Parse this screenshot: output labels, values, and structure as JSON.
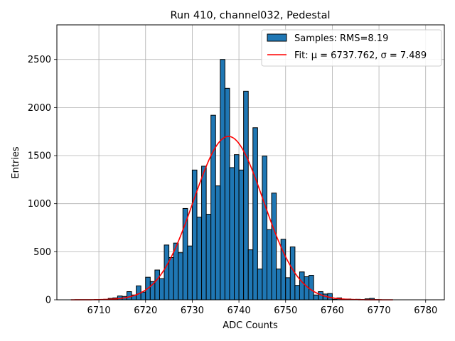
{
  "chart_data": {
    "type": "bar",
    "title": "Run 410, channel032, Pedestal",
    "xlabel": "ADC Counts",
    "ylabel": "Entries",
    "xlim": [
      6701,
      6784
    ],
    "ylim": [
      0,
      2860
    ],
    "xticks": [
      6710,
      6720,
      6730,
      6740,
      6750,
      6760,
      6770,
      6780
    ],
    "yticks": [
      0,
      500,
      1000,
      1500,
      2000,
      2500
    ],
    "grid": true,
    "legend_position": "top-right",
    "bin_width": 1,
    "colors": {
      "bars": "#1f77b4",
      "fit": "#ff0000",
      "grid": "#b0b0b0"
    },
    "series": [
      {
        "name": "Samples: RMS=8.19",
        "type": "bar",
        "bin_left_edges": [
          6711,
          6712,
          6713,
          6714,
          6715,
          6716,
          6717,
          6718,
          6719,
          6720,
          6721,
          6722,
          6723,
          6724,
          6725,
          6726,
          6727,
          6728,
          6729,
          6730,
          6731,
          6732,
          6733,
          6734,
          6735,
          6736,
          6737,
          6738,
          6739,
          6740,
          6741,
          6742,
          6743,
          6744,
          6745,
          6746,
          6747,
          6748,
          6749,
          6750,
          6751,
          6752,
          6753,
          6754,
          6755,
          6756,
          6757,
          6758,
          6759,
          6760,
          6761,
          6762,
          6763,
          6764,
          6765,
          6766,
          6767,
          6768,
          6769
        ],
        "values": [
          5,
          15,
          20,
          40,
          35,
          85,
          50,
          145,
          80,
          235,
          190,
          310,
          220,
          570,
          440,
          590,
          490,
          950,
          560,
          1350,
          860,
          1390,
          890,
          1920,
          1185,
          2500,
          2200,
          1375,
          1510,
          1350,
          2170,
          520,
          1790,
          320,
          1495,
          730,
          1110,
          320,
          630,
          230,
          550,
          150,
          290,
          240,
          255,
          50,
          85,
          60,
          65,
          5,
          20,
          3,
          8,
          2,
          5,
          2,
          10,
          15,
          2
        ]
      },
      {
        "name": "Fit: μ = 6737.762, σ = 7.489",
        "type": "line",
        "mu": 6737.762,
        "sigma": 7.489,
        "amplitude": 1700,
        "x_range": [
          6704,
          6773
        ]
      }
    ]
  }
}
